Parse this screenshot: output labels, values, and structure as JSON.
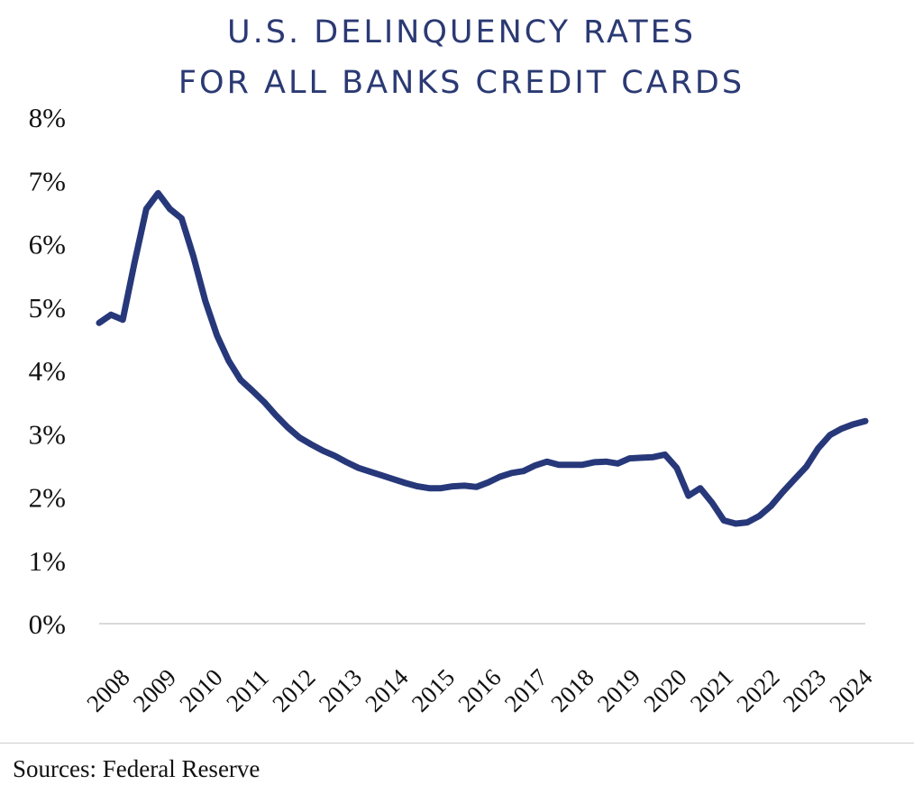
{
  "title": {
    "line1": "U.S. DELINQUENCY RATES",
    "line2": "FOR ALL BANKS CREDIT CARDS"
  },
  "source": "Sources: Federal Reserve",
  "colors": {
    "line": "#27387a",
    "title": "#2b3a73",
    "baseline": "#d9d9d9"
  },
  "chart_data": {
    "type": "line",
    "title": "U.S. DELINQUENCY RATES FOR ALL BANKS CREDIT CARDS",
    "xlabel": "",
    "ylabel": "",
    "x_tick_labels": [
      "2008",
      "2009",
      "2010",
      "2011",
      "2012",
      "2013",
      "2014",
      "2015",
      "2016",
      "2017",
      "2018",
      "2019",
      "2020",
      "2021",
      "2022",
      "2023",
      "2024"
    ],
    "y_tick_labels": [
      "0%",
      "1%",
      "2%",
      "3%",
      "4%",
      "5%",
      "6%",
      "7%",
      "8%"
    ],
    "ylim": [
      0,
      8
    ],
    "xlim": [
      2008.0,
      2024.25
    ],
    "grid": false,
    "legend": "none",
    "series": [
      {
        "x": [
          2008.0,
          2008.25,
          2008.5,
          2008.75,
          2009.0,
          2009.25,
          2009.5,
          2009.75,
          2010.0,
          2010.25,
          2010.5,
          2010.75,
          2011.0,
          2011.25,
          2011.5,
          2011.75,
          2012.0,
          2012.25,
          2012.5,
          2012.75,
          2013.0,
          2013.25,
          2013.5,
          2013.75,
          2014.0,
          2014.25,
          2014.5,
          2014.75,
          2015.0,
          2015.25,
          2015.5,
          2015.75,
          2016.0,
          2016.25,
          2016.5,
          2016.75,
          2017.0,
          2017.25,
          2017.5,
          2017.75,
          2018.0,
          2018.25,
          2018.5,
          2018.75,
          2019.0,
          2019.25,
          2019.5,
          2019.75,
          2020.0,
          2020.25,
          2020.5,
          2020.75,
          2021.0,
          2021.25,
          2021.5,
          2021.75,
          2022.0,
          2022.25,
          2022.5,
          2022.75,
          2023.0,
          2023.25,
          2023.5,
          2023.75,
          2024.0,
          2024.25
        ],
        "values": [
          4.75,
          4.88,
          4.8,
          5.7,
          6.55,
          6.8,
          6.55,
          6.4,
          5.8,
          5.1,
          4.55,
          4.15,
          3.85,
          3.68,
          3.5,
          3.29,
          3.1,
          2.94,
          2.83,
          2.73,
          2.65,
          2.55,
          2.46,
          2.4,
          2.34,
          2.28,
          2.22,
          2.17,
          2.14,
          2.14,
          2.17,
          2.18,
          2.16,
          2.23,
          2.32,
          2.38,
          2.41,
          2.5,
          2.56,
          2.51,
          2.51,
          2.51,
          2.55,
          2.56,
          2.53,
          2.61,
          2.62,
          2.63,
          2.67,
          2.46,
          2.02,
          2.14,
          1.91,
          1.63,
          1.58,
          1.6,
          1.7,
          1.86,
          2.08,
          2.28,
          2.48,
          2.77,
          2.98,
          3.08,
          3.15,
          3.2
        ]
      }
    ]
  }
}
